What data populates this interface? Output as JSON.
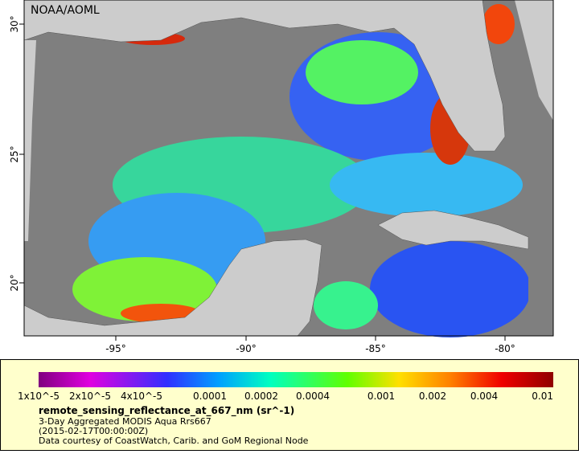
{
  "map": {
    "credit": "NOAA/AOML",
    "lon_ticks": [
      "-95°",
      "-90°",
      "-85°",
      "-80°"
    ],
    "lat_ticks": [
      "30°",
      "25°",
      "20°"
    ],
    "colorbar": {
      "labels": [
        "1x10^-5",
        "2x10^-5",
        "4x10^-5",
        "0.0001",
        "0.0002",
        "0.0004",
        "0.001",
        "0.002",
        "0.004",
        "0.01"
      ],
      "title": "remote_sensing_reflectance_at_667_nm (sr^-1)",
      "lines": [
        "3-Day Aggregated MODIS Aqua Rrs667",
        "(2015-02-17T00:00:00Z)",
        "Data courtesy of CoastWatch, Carib. and GoM Regional Node"
      ]
    }
  }
}
